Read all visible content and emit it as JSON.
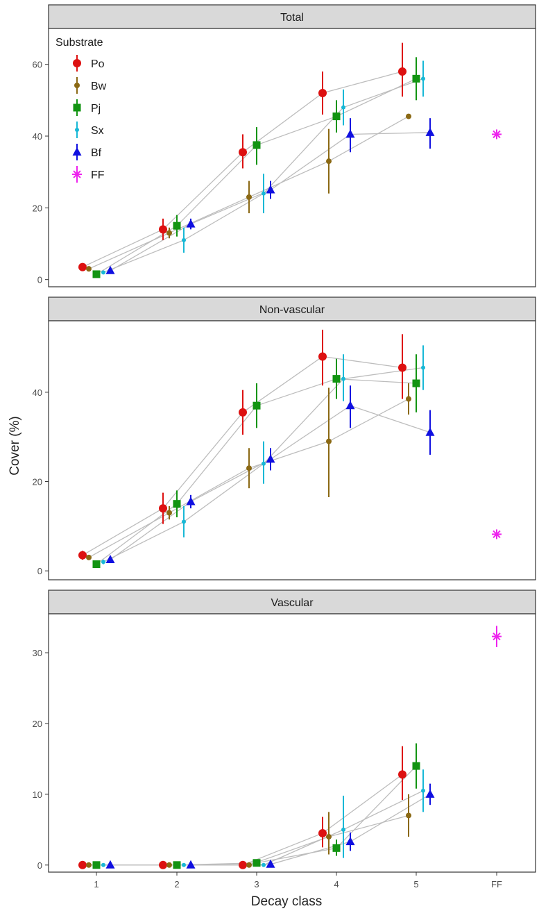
{
  "chart_data": {
    "type": "scatter",
    "xlabel": "Decay class",
    "ylabel": "Cover (%)",
    "x_categories": [
      "1",
      "2",
      "3",
      "4",
      "5",
      "FF"
    ],
    "legend": {
      "title": "Substrate",
      "entries": [
        {
          "key": "Po",
          "label": "Po",
          "color": "#dd1111",
          "shape": "circle-large"
        },
        {
          "key": "Bw",
          "label": "Bw",
          "color": "#8b6914",
          "shape": "circle-small"
        },
        {
          "key": "Pj",
          "label": "Pj",
          "color": "#129412",
          "shape": "square"
        },
        {
          "key": "Sx",
          "label": "Sx",
          "color": "#17b8d6",
          "shape": "circle-tiny"
        },
        {
          "key": "Bf",
          "label": "Bf",
          "color": "#1010e0",
          "shape": "triangle"
        },
        {
          "key": "FF",
          "label": "FF",
          "color": "#ee22ee",
          "shape": "asterisk"
        }
      ]
    },
    "panels": [
      {
        "title": "Total",
        "ylim": [
          -2,
          70
        ],
        "yticks": [
          0,
          20,
          40,
          60
        ],
        "series": [
          {
            "name": "Po",
            "x": [
              1,
              2,
              3,
              4,
              5
            ],
            "y": [
              3.5,
              14,
              35.5,
              52,
              58
            ],
            "ymin": [
              2.5,
              11,
              31,
              46,
              51
            ],
            "ymax": [
              4.5,
              17,
              40.5,
              58,
              66
            ]
          },
          {
            "name": "Bw",
            "x": [
              1,
              2,
              3,
              4,
              5
            ],
            "y": [
              3,
              13,
              23,
              33,
              45.5
            ],
            "ymin": [
              2.5,
              11.5,
              18.5,
              24,
              45
            ],
            "ymax": [
              3.5,
              14.5,
              27.5,
              42,
              46
            ]
          },
          {
            "name": "Pj",
            "x": [
              1,
              2,
              3,
              4,
              5
            ],
            "y": [
              1.5,
              15,
              37.5,
              45.5,
              56
            ],
            "ymin": [
              1,
              12,
              32,
              41,
              50
            ],
            "ymax": [
              2,
              18,
              42.5,
              50,
              62
            ]
          },
          {
            "name": "Sx",
            "x": [
              1,
              2,
              3,
              4,
              5
            ],
            "y": [
              2,
              11,
              24,
              48,
              56
            ],
            "ymin": [
              1.5,
              7.5,
              18.5,
              43,
              51
            ],
            "ymax": [
              2.5,
              14.5,
              29.5,
              53,
              61
            ]
          },
          {
            "name": "Bf",
            "x": [
              1,
              2,
              3,
              4,
              5
            ],
            "y": [
              2.5,
              15.5,
              25,
              40.5,
              41
            ],
            "ymin": [
              2,
              14,
              22.5,
              35.5,
              36.5
            ],
            "ymax": [
              3,
              17,
              27.5,
              45,
              45
            ]
          },
          {
            "name": "FF",
            "x": [
              "FF"
            ],
            "y": [
              40.5
            ],
            "ymin": [
              39.5
            ],
            "ymax": [
              41.5
            ]
          }
        ]
      },
      {
        "title": "Non-vascular",
        "ylim": [
          -2,
          56
        ],
        "yticks": [
          0,
          20,
          40
        ],
        "series": [
          {
            "name": "Po",
            "x": [
              1,
              2,
              3,
              4,
              5
            ],
            "y": [
              3.5,
              14,
              35.5,
              48,
              45.5
            ],
            "ymin": [
              2.5,
              10.5,
              30.5,
              41.5,
              38.5
            ],
            "ymax": [
              4.5,
              17.5,
              40.5,
              54,
              53
            ]
          },
          {
            "name": "Bw",
            "x": [
              1,
              2,
              3,
              4,
              5
            ],
            "y": [
              3,
              13,
              23,
              29,
              38.5
            ],
            "ymin": [
              2.5,
              11.5,
              18.5,
              16.5,
              35
            ],
            "ymax": [
              3.5,
              14.5,
              27.5,
              41,
              42
            ]
          },
          {
            "name": "Pj",
            "x": [
              1,
              2,
              3,
              4,
              5
            ],
            "y": [
              1.5,
              15,
              37,
              43,
              42
            ],
            "ymin": [
              1,
              12,
              32,
              38.5,
              35.5
            ],
            "ymax": [
              2,
              18,
              42,
              47.5,
              48.5
            ]
          },
          {
            "name": "Sx",
            "x": [
              1,
              2,
              3,
              4,
              5
            ],
            "y": [
              2,
              11,
              24,
              43,
              45.5
            ],
            "ymin": [
              1.5,
              7.5,
              19.5,
              38,
              40.5
            ],
            "ymax": [
              2.5,
              14.5,
              29,
              48.5,
              50.5
            ]
          },
          {
            "name": "Bf",
            "x": [
              1,
              2,
              3,
              4,
              5
            ],
            "y": [
              2.5,
              15.5,
              25,
              37,
              31
            ],
            "ymin": [
              2,
              14,
              22.5,
              32,
              26
            ],
            "ymax": [
              3,
              17,
              27.5,
              41.5,
              36
            ]
          },
          {
            "name": "FF",
            "x": [
              "FF"
            ],
            "y": [
              8.2
            ],
            "ymin": [
              7.5
            ],
            "ymax": [
              9
            ]
          }
        ]
      },
      {
        "title": "Vascular",
        "ylim": [
          -1,
          35.5
        ],
        "yticks": [
          0,
          10,
          20,
          30
        ],
        "series": [
          {
            "name": "Po",
            "x": [
              1,
              2,
              3,
              4,
              5
            ],
            "y": [
              0,
              0,
              0,
              4.5,
              12.8
            ],
            "ymin": [
              0,
              0,
              0,
              2.5,
              9.2
            ],
            "ymax": [
              0,
              0,
              0,
              6.8,
              16.8
            ]
          },
          {
            "name": "Bw",
            "x": [
              1,
              2,
              3,
              4,
              5
            ],
            "y": [
              0,
              0,
              0,
              4,
              7
            ],
            "ymin": [
              0,
              0,
              0,
              1.5,
              4
            ],
            "ymax": [
              0,
              0,
              0,
              7.5,
              10
            ]
          },
          {
            "name": "Pj",
            "x": [
              1,
              2,
              3,
              4,
              5
            ],
            "y": [
              0,
              0,
              0.3,
              2.4,
              14
            ],
            "ymin": [
              0,
              0,
              0,
              1.3,
              10.8
            ],
            "ymax": [
              0,
              0,
              0.6,
              3.6,
              17.2
            ]
          },
          {
            "name": "Sx",
            "x": [
              1,
              2,
              3,
              4,
              5
            ],
            "y": [
              0,
              0,
              0,
              5,
              10.5
            ],
            "ymin": [
              0,
              0,
              0,
              1,
              7.5
            ],
            "ymax": [
              0,
              0,
              0,
              9.8,
              13.5
            ]
          },
          {
            "name": "Bf",
            "x": [
              1,
              2,
              3,
              4,
              5
            ],
            "y": [
              0,
              0,
              0.1,
              3.3,
              10
            ],
            "ymin": [
              0,
              0,
              0,
              2,
              8.5
            ],
            "ymax": [
              0,
              0,
              0.3,
              4.6,
              11.5
            ]
          },
          {
            "name": "FF",
            "x": [
              "FF"
            ],
            "y": [
              32.3
            ],
            "ymin": [
              30.8
            ],
            "ymax": [
              33.8
            ]
          }
        ]
      }
    ]
  }
}
